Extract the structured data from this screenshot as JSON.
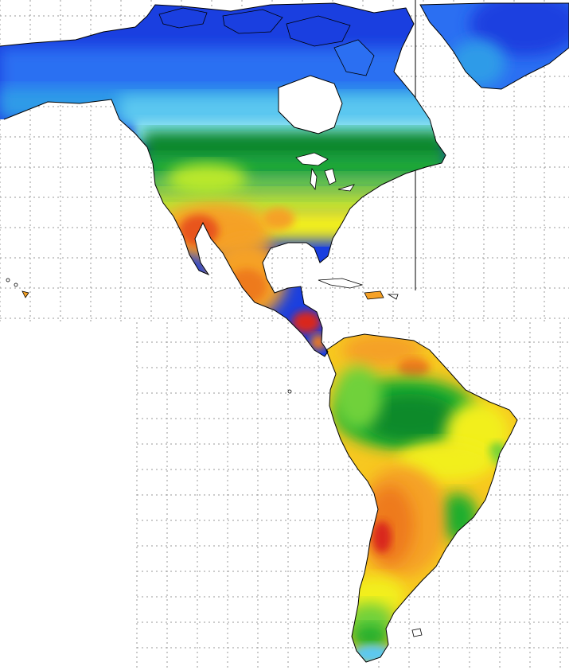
{
  "map": {
    "type": "choropleth-contour",
    "region": "Americas",
    "graticule": "dotted",
    "coastlines": "black",
    "colors": {
      "background": "#ffffff",
      "grid": "#9a9a9a",
      "coast": "#000000",
      "deep_blue": "#1a3fe0",
      "blue": "#2b6ff2",
      "mid_blue": "#2f9be8",
      "light_blue": "#5cc8f0",
      "cyan": "#86e2f2",
      "dark_green": "#0b8a2a",
      "green": "#1fae2e",
      "light_green": "#6fd13a",
      "lime": "#b9e82c",
      "yellow": "#f2ef1e",
      "gold": "#f7c820",
      "orange": "#f5a126",
      "dark_orange": "#ee7a1e",
      "red_orange": "#e8541c",
      "red": "#d9261a"
    }
  }
}
